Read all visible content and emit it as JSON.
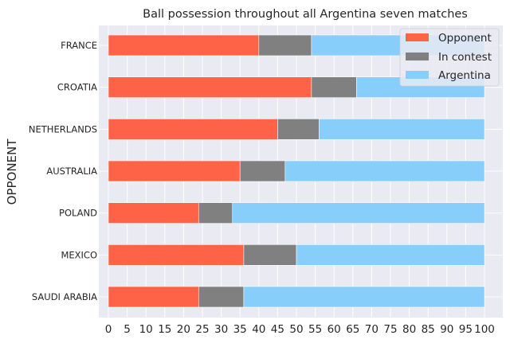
{
  "chart_data": {
    "type": "bar",
    "orientation": "horizontal",
    "stacked": true,
    "title": "Ball possession throughout all Argentina seven matches",
    "xlabel": "",
    "ylabel": "OPPONENT",
    "xlim": [
      0,
      100
    ],
    "xticks": [
      0,
      5,
      10,
      15,
      20,
      25,
      30,
      35,
      40,
      45,
      50,
      55,
      60,
      65,
      70,
      75,
      80,
      85,
      90,
      95,
      100
    ],
    "grid": true,
    "legend_position": "top-right",
    "categories": [
      "SAUDI ARABIA",
      "MEXICO",
      "POLAND",
      "AUSTRALIA",
      "NETHERLANDS",
      "CROATIA",
      "FRANCE"
    ],
    "series": [
      {
        "name": "Opponent",
        "color": "#ff6347",
        "values": [
          24,
          36,
          24,
          35,
          45,
          54,
          40
        ]
      },
      {
        "name": "In contest",
        "color": "#808080",
        "values": [
          12,
          14,
          9,
          12,
          11,
          12,
          14
        ]
      },
      {
        "name": "Argentina",
        "color": "#87cefa",
        "values": [
          64,
          50,
          67,
          53,
          44,
          34,
          46
        ]
      }
    ]
  }
}
